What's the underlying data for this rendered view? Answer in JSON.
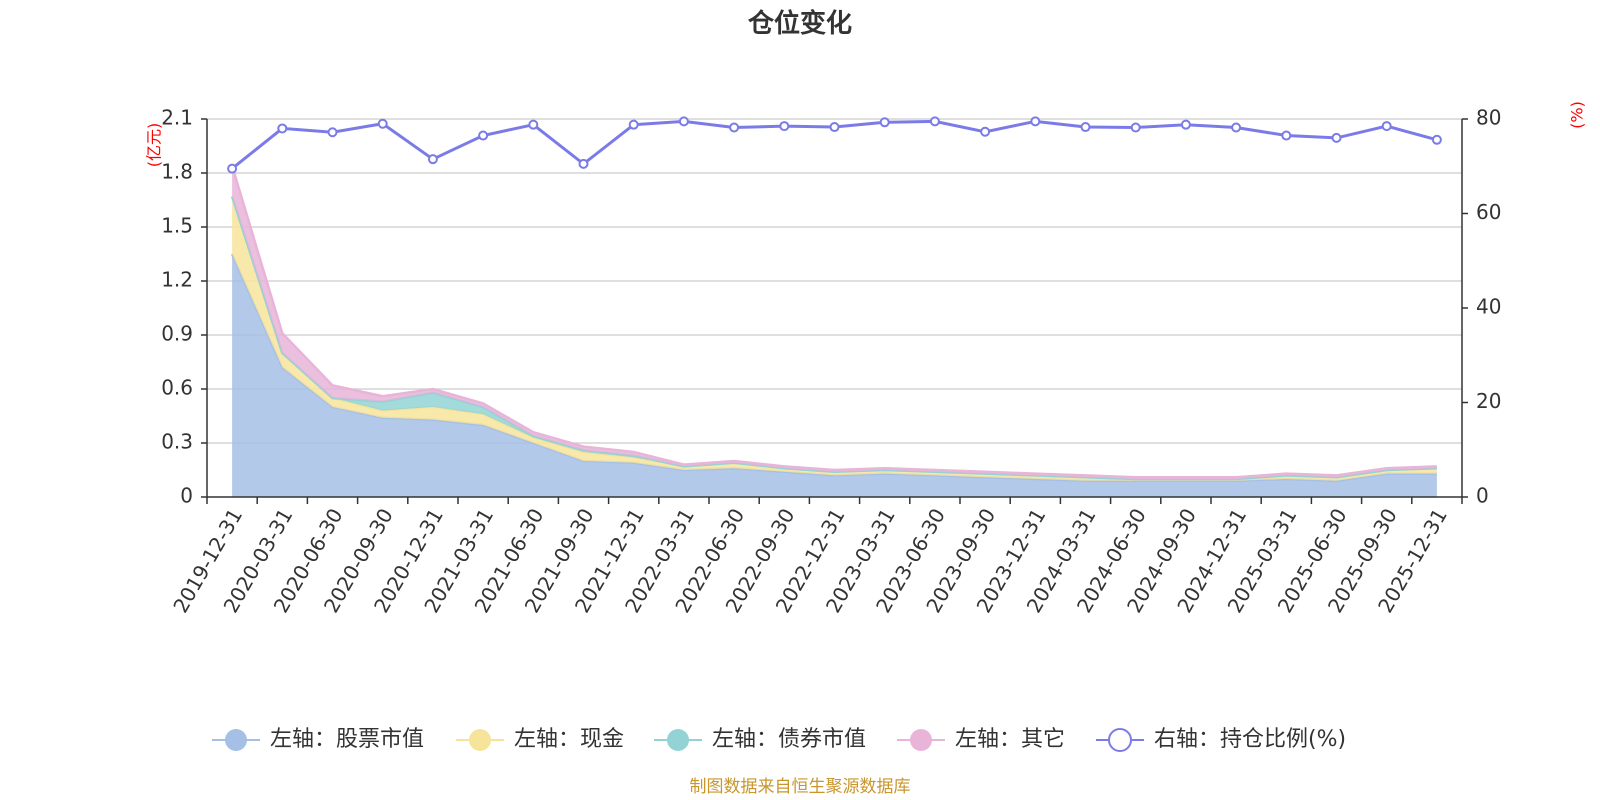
{
  "chart_data": {
    "type": "area",
    "title": "仓位变化",
    "source": "制图数据来自恒生聚源数据库",
    "y_left": {
      "unit": "(亿元)",
      "ylim": [
        0,
        2.1
      ],
      "ticks": [
        "0",
        "0.3",
        "0.6",
        "0.9",
        "1.2",
        "1.5",
        "1.8",
        "2.1"
      ]
    },
    "y_right": {
      "unit": "(%)",
      "ylim": [
        0,
        80
      ],
      "ticks": [
        "0",
        "20",
        "40",
        "60",
        "80"
      ]
    },
    "categories": [
      "2019-12-31",
      "2020-03-31",
      "2020-06-30",
      "2020-09-30",
      "2020-12-31",
      "2021-03-31",
      "2021-06-30",
      "2021-09-30",
      "2021-12-31",
      "2022-03-31",
      "2022-06-30",
      "2022-09-30",
      "2022-12-31",
      "2023-03-31",
      "2023-06-30",
      "2023-09-30",
      "2023-12-31",
      "2024-03-31",
      "2024-06-30",
      "2024-09-30",
      "2024-12-31",
      "2025-03-31",
      "2025-06-30",
      "2025-09-30",
      "2025-12-31"
    ],
    "series": [
      {
        "name": "左轴：股票市值",
        "axis": "left",
        "stack": true,
        "color": "#a5bfe6",
        "values": [
          1.35,
          0.72,
          0.5,
          0.44,
          0.43,
          0.4,
          0.3,
          0.2,
          0.19,
          0.15,
          0.16,
          0.14,
          0.12,
          0.13,
          0.12,
          0.11,
          0.1,
          0.09,
          0.09,
          0.09,
          0.09,
          0.1,
          0.09,
          0.13,
          0.13
        ]
      },
      {
        "name": "左轴：现金",
        "axis": "left",
        "stack": true,
        "color": "#f7e49b",
        "values": [
          0.32,
          0.08,
          0.05,
          0.04,
          0.07,
          0.06,
          0.03,
          0.05,
          0.03,
          0.02,
          0.03,
          0.02,
          0.02,
          0.02,
          0.02,
          0.02,
          0.02,
          0.02,
          0.01,
          0.01,
          0.01,
          0.02,
          0.02,
          0.02,
          0.03
        ]
      },
      {
        "name": "左轴：债券市值",
        "axis": "left",
        "stack": true,
        "color": "#93d3d5",
        "values": [
          0,
          0,
          0,
          0.05,
          0.08,
          0.04,
          0.01,
          0.01,
          0.01,
          0,
          0,
          0,
          0,
          0,
          0,
          0,
          0,
          0,
          0,
          0,
          0,
          0,
          0,
          0,
          0
        ]
      },
      {
        "name": "左轴：其它",
        "axis": "left",
        "stack": true,
        "color": "#e8b4d8",
        "values": [
          0.17,
          0.11,
          0.07,
          0.03,
          0.02,
          0.02,
          0.02,
          0.02,
          0.02,
          0.01,
          0.01,
          0.01,
          0.01,
          0.01,
          0.01,
          0.01,
          0.01,
          0.01,
          0.01,
          0.01,
          0.01,
          0.01,
          0.01,
          0.01,
          0.01
        ]
      },
      {
        "name": "右轴：持仓比例(%)",
        "axis": "right",
        "type": "line",
        "color": "#7b7be8",
        "values": [
          69.5,
          78.0,
          77.2,
          79.0,
          71.5,
          76.5,
          78.8,
          70.5,
          78.8,
          79.5,
          78.2,
          78.5,
          78.3,
          79.3,
          79.5,
          77.3,
          79.5,
          78.3,
          78.2,
          78.8,
          78.2,
          76.5,
          76.0,
          78.5,
          75.6
        ]
      }
    ],
    "legend_position": "bottom",
    "grid": true
  }
}
